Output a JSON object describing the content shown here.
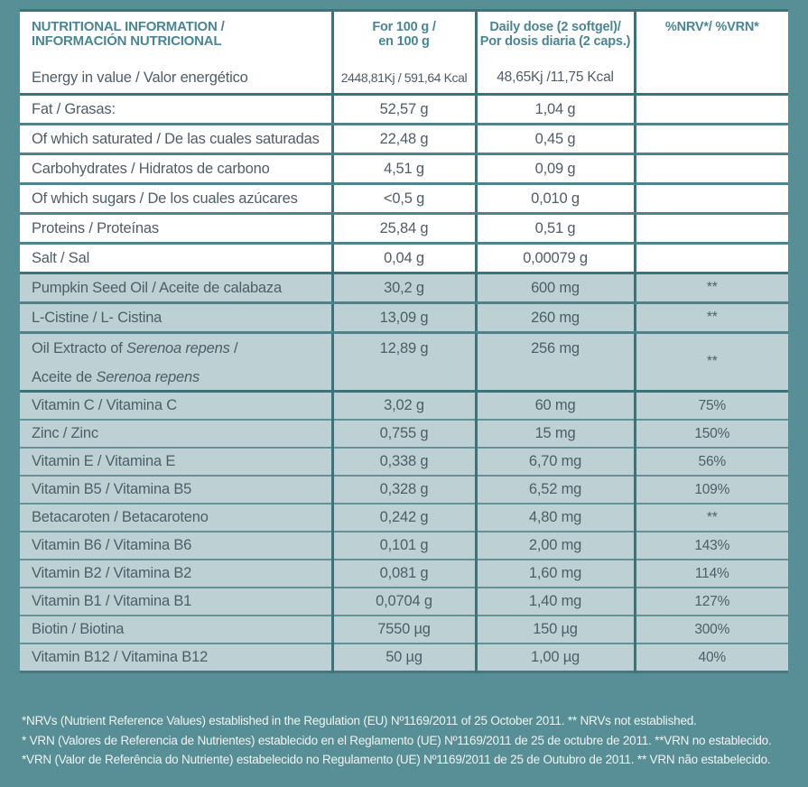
{
  "colors": {
    "background": "#588E95",
    "row_shaded": "#BDD0D3",
    "border_dark": "#3E727A",
    "border_medium": "#4F838B",
    "border_thin": "#639399",
    "header_text": "#4C8591",
    "body_text": "#4F5D68",
    "footnote_text": "#EFF4F4"
  },
  "table": {
    "header": {
      "nutrition": [
        "NUTRITIONAL INFORMATION /",
        "INFORMACIÓN NUTRICIONAL"
      ],
      "per100": [
        "For 100 g /",
        "en 100 g"
      ],
      "daily": [
        "Daily dose (2 softgel)/",
        "Por dosis diaria (2 caps.)"
      ],
      "nrv": "%NRV*/ %VRN*"
    },
    "rows": [
      {
        "label": "Energy in value / Valor energético",
        "per100": "2448,81Kj / 591,64 Kcal",
        "daily": "48,65Kj /11,75 Kcal",
        "nrv": "",
        "section": "energy",
        "sep": "strong"
      },
      {
        "label": "Fat / Grasas:",
        "per100": "52,57 g",
        "daily": "1,04 g",
        "nrv": "",
        "section": "macro",
        "sep": "med"
      },
      {
        "label": "Of which saturated / De las cuales saturadas",
        "per100": "22,48 g",
        "daily": "0,45 g",
        "nrv": "",
        "section": "macro",
        "sep": "med"
      },
      {
        "label": "Carbohydrates / Hidratos de carbono",
        "per100": "4,51 g",
        "daily": "0,09 g",
        "nrv": "",
        "section": "macro",
        "sep": "med"
      },
      {
        "label": "Of which sugars / De los cuales azúcares",
        "per100": "<0,5 g",
        "daily": "0,010 g",
        "nrv": "",
        "section": "macro",
        "sep": "med"
      },
      {
        "label": "Proteins / Proteínas",
        "per100": "25,84 g",
        "daily": "0,51 g",
        "nrv": "",
        "section": "macro",
        "sep": "med"
      },
      {
        "label": "Salt / Sal",
        "per100": "0,04 g",
        "daily": "0,00079 g",
        "nrv": "",
        "section": "macro",
        "sep": "strong"
      },
      {
        "label": "Pumpkin Seed Oil / Aceite de calabaza",
        "per100": "30,2 g",
        "daily": "600 mg",
        "nrv": "**",
        "section": "active",
        "sep": "med"
      },
      {
        "label": "L-Cistine / L- Cistina",
        "per100": "13,09 g",
        "daily": "260 mg",
        "nrv": "**",
        "section": "active",
        "sep": "med"
      },
      {
        "label": [
          [
            {
              "text": "Oil Extracto of "
            },
            {
              "text": "Serenoa repens",
              "italic": true
            },
            {
              "text": " /"
            }
          ],
          [
            {
              "text": "Aceite de "
            },
            {
              "text": "Serenoa repens",
              "italic": true
            }
          ]
        ],
        "per100": "12,89 g",
        "daily": "256 mg",
        "nrv": "**",
        "section": "active-tall",
        "sep": "strong"
      },
      {
        "label": "Vitamin C / Vitamina C",
        "per100": "3,02 g",
        "daily": "60 mg",
        "nrv": "75%",
        "section": "vit",
        "sep": "thin"
      },
      {
        "label": "Zinc / Zinc",
        "per100": "0,755 g",
        "daily": "15 mg",
        "nrv": "150%",
        "section": "vit",
        "sep": "thin"
      },
      {
        "label": "Vitamin E / Vitamina E",
        "per100": "0,338 g",
        "daily": "6,70 mg",
        "nrv": "56%",
        "section": "vit",
        "sep": "thin"
      },
      {
        "label": "Vitamin B5 / Vitamina B5",
        "per100": "0,328 g",
        "daily": "6,52 mg",
        "nrv": "109%",
        "section": "vit",
        "sep": "thin"
      },
      {
        "label": "Betacaroten / Betacaroteno",
        "per100": "0,242 g",
        "daily": "4,80 mg",
        "nrv": "**",
        "section": "vit",
        "sep": "thin"
      },
      {
        "label": "Vitamin B6 / Vitamina B6",
        "per100": "0,101 g",
        "daily": "2,00 mg",
        "nrv": "143%",
        "section": "vit",
        "sep": "thin"
      },
      {
        "label": "Vitamin B2 / Vitamina B2",
        "per100": "0,081 g",
        "daily": "1,60 mg",
        "nrv": "114%",
        "section": "vit",
        "sep": "thin"
      },
      {
        "label": "Vitamin B1 / Vitamina B1",
        "per100": "0,0704 g",
        "daily": "1,40 mg",
        "nrv": "127%",
        "section": "vit",
        "sep": "thin"
      },
      {
        "label": "Biotin / Biotina",
        "per100": "7550 µg",
        "daily": "150 µg",
        "nrv": "300%",
        "section": "vit",
        "sep": "thin"
      },
      {
        "label": "Vitamin B12 / Vitamina B12",
        "per100": "50 µg",
        "daily": "1,00 µg",
        "nrv": "40%",
        "section": "vit",
        "sep": "none"
      }
    ]
  },
  "footnotes": [
    "*NRVs (Nutrient Reference Values) established in the Regulation (EU) Nº1169/2011 of 25 October 2011. ** NRVs not established.",
    "* VRN (Valores de Referencia de Nutrientes) establecido en el Reglamento (UE) Nº1169/2011 de 25 de octubre de 2011. **VRN no establecido.",
    "*VRN (Valor de Referência do Nutriente) estabelecido no Regulamento (UE) Nº1169/2011 de 25 de Outubro de 2011. ** VRN não estabelecido."
  ]
}
